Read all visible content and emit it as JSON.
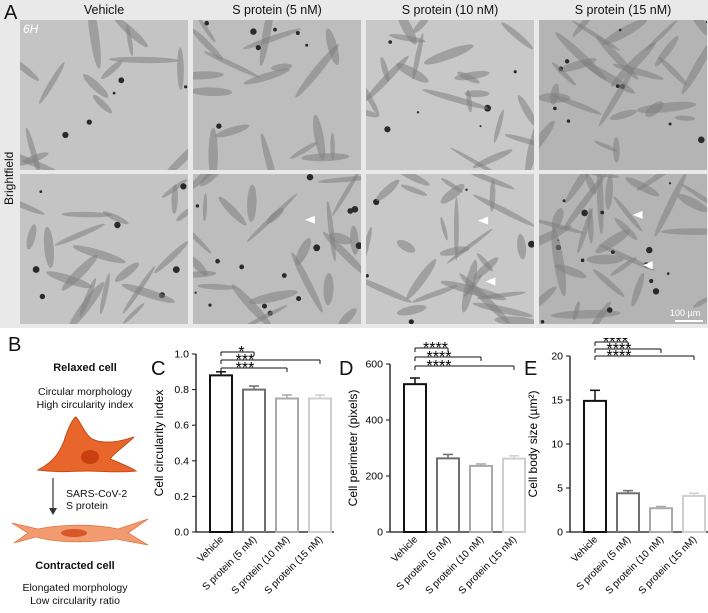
{
  "panel_letters": {
    "a": "A",
    "b": "B",
    "c": "C",
    "d": "D",
    "e": "E"
  },
  "panel_a": {
    "columns": [
      "Vehicle",
      "S protein (5 nM)",
      "S protein (10 nM)",
      "S protein (15 nM)"
    ],
    "row_label": "Brightfield",
    "time_label": "6H",
    "scalebar_label": "100 µm"
  },
  "panel_b": {
    "relaxed_title": "Relaxed cell",
    "relaxed_desc_1": "Circular morphology",
    "relaxed_desc_2": "High circularity index",
    "arrow_label_1": "SARS-CoV-2",
    "arrow_label_2": "S protein",
    "contracted_title": "Contracted cell",
    "contracted_desc_1": "Elongated morphology",
    "contracted_desc_2": "Low circularity ratio",
    "relaxed_color": "#e8662c",
    "contracted_color": "#f08a5d"
  },
  "chart_data": [
    {
      "type": "bar",
      "categories": [
        "Vehicle",
        "S protein (5 nM)",
        "S protein (10 nM)",
        "S protein (15 nM)"
      ],
      "values": [
        0.88,
        0.8,
        0.75,
        0.75
      ],
      "errors": [
        0.02,
        0.02,
        0.02,
        0.02
      ],
      "ylabel": "Cell circularity index",
      "ylim": [
        0,
        1.0
      ],
      "yticks": [
        "0.0",
        "0.2",
        "0.4",
        "0.6",
        "0.8",
        "1.0"
      ],
      "tickvals": [
        0,
        0.2,
        0.4,
        0.6,
        0.8,
        1.0
      ],
      "significance": [
        {
          "from": 0,
          "to": 1,
          "label": "*"
        },
        {
          "from": 0,
          "to": 3,
          "label": "***"
        },
        {
          "from": 0,
          "to": 2,
          "label": "***"
        }
      ]
    },
    {
      "type": "bar",
      "categories": [
        "Vehicle",
        "S protein (5 nM)",
        "S protein (10 nM)",
        "S protein (15 nM)"
      ],
      "values": [
        528,
        263,
        236,
        262
      ],
      "errors": [
        22,
        14,
        7,
        10
      ],
      "ylabel": "Cell perimeter (pixels)",
      "ylim": [
        0,
        600
      ],
      "yticks": [
        "0",
        "200",
        "400",
        "600"
      ],
      "tickvals": [
        0,
        200,
        400,
        600
      ],
      "significance": [
        {
          "from": 0,
          "to": 3,
          "label": "****"
        },
        {
          "from": 0,
          "to": 2,
          "label": "****"
        },
        {
          "from": 0,
          "to": 1,
          "label": "****"
        }
      ]
    },
    {
      "type": "bar",
      "categories": [
        "Vehicle",
        "S protein (5 nM)",
        "S protein (10 nM)",
        "S protein (15 nM)"
      ],
      "values": [
        14.9,
        4.4,
        2.7,
        4.1
      ],
      "errors": [
        1.2,
        0.3,
        0.2,
        0.3
      ],
      "ylabel": "Cell body size (µm²)",
      "ylim": [
        0,
        20
      ],
      "yticks": [
        "0",
        "5",
        "10",
        "15",
        "20"
      ],
      "tickvals": [
        0,
        5,
        10,
        15,
        20
      ],
      "significance": [
        {
          "from": 0,
          "to": 3,
          "label": "****"
        },
        {
          "from": 0,
          "to": 2,
          "label": "****"
        },
        {
          "from": 0,
          "to": 1,
          "label": "****"
        }
      ]
    }
  ],
  "bar_colors": [
    "#111111",
    "#6f6f6f",
    "#a9a9a9",
    "#cfcfcf"
  ]
}
